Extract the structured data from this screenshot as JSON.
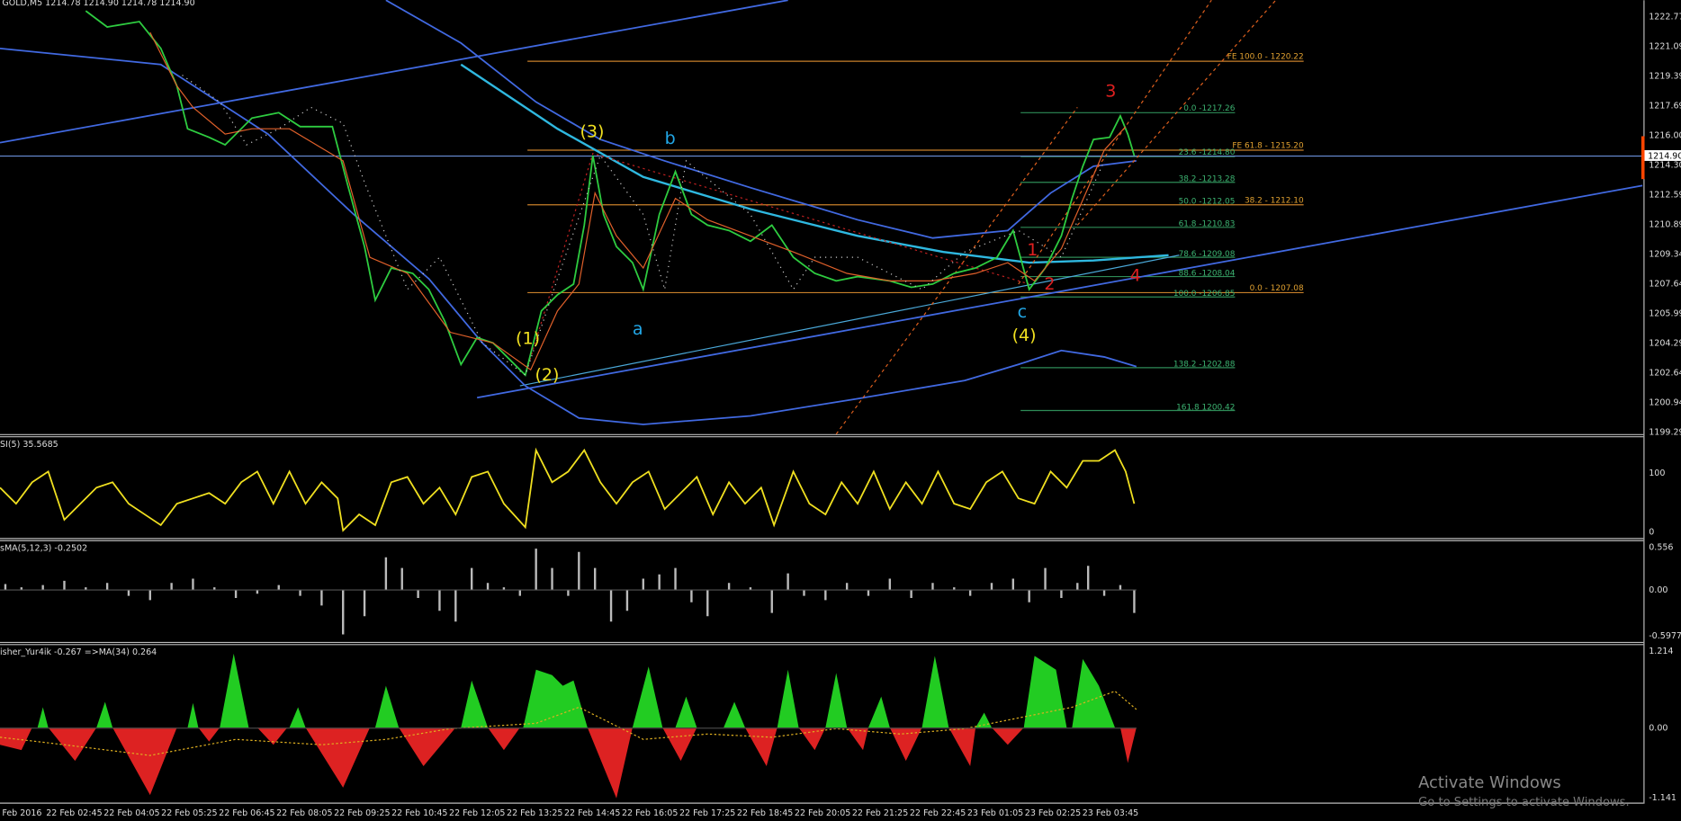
{
  "window": {
    "title": "GOLD,M5  1214.78 1214.90 1214.78 1214.90"
  },
  "price_axis": {
    "labels": [
      "1222.77",
      "1221.09",
      "1219.39",
      "1217.69",
      "1216.00",
      "1214.30",
      "1212.59",
      "1210.89",
      "1209.34",
      "1207.64",
      "1205.99",
      "1204.29",
      "1202.64",
      "1200.94",
      "1199.29"
    ],
    "current": "1214.90"
  },
  "wave_labels": [
    "(1)",
    "(2)",
    "(3)",
    "(4)",
    "a",
    "b",
    "c",
    "1",
    "2",
    "3",
    "4"
  ],
  "fib_labels": [
    "0.0 -1217.26",
    "23.6 -1214.80",
    "38.2 -1213.28",
    "50.0 -1212.05",
    "61.8 -1210.83",
    "78.6 -1209.08",
    "88.6 -1208.04",
    "100.0 -1206.85",
    "138.2 -1202.88",
    "161.8 1200.42"
  ],
  "fe_labels": [
    "FE 100.0 - 1220.22",
    "FE 61.8 - 1215.20",
    "38.2 - 1212.10",
    "0.0 - 1207.08"
  ],
  "indicators": [
    {
      "title": "SI(5) 35.5685",
      "scale": [
        "100",
        "0"
      ]
    },
    {
      "title": "sMA(5,12,3) -0.2502",
      "scale": [
        "0.556",
        "0.00",
        "-0.5977"
      ]
    },
    {
      "title": "isher_Yur4ik -0.267  =>MA(34) 0.264",
      "scale": [
        "1.214",
        "0.00",
        "-1.141"
      ]
    }
  ],
  "time_axis": [
    "Feb 2016",
    "22 Feb 02:45",
    "22 Feb 04:05",
    "22 Feb 05:25",
    "22 Feb 06:45",
    "22 Feb 08:05",
    "22 Feb 09:25",
    "22 Feb 10:45",
    "22 Feb 12:05",
    "22 Feb 13:25",
    "22 Feb 14:45",
    "22 Feb 16:05",
    "22 Feb 17:25",
    "22 Feb 18:45",
    "22 Feb 20:05",
    "22 Feb 21:25",
    "22 Feb 22:45",
    "23 Feb 01:05",
    "23 Feb 02:25",
    "23 Feb 03:45"
  ],
  "watermark": {
    "title": "Activate Windows",
    "subtitle": "Go to Settings to activate Windows."
  }
}
